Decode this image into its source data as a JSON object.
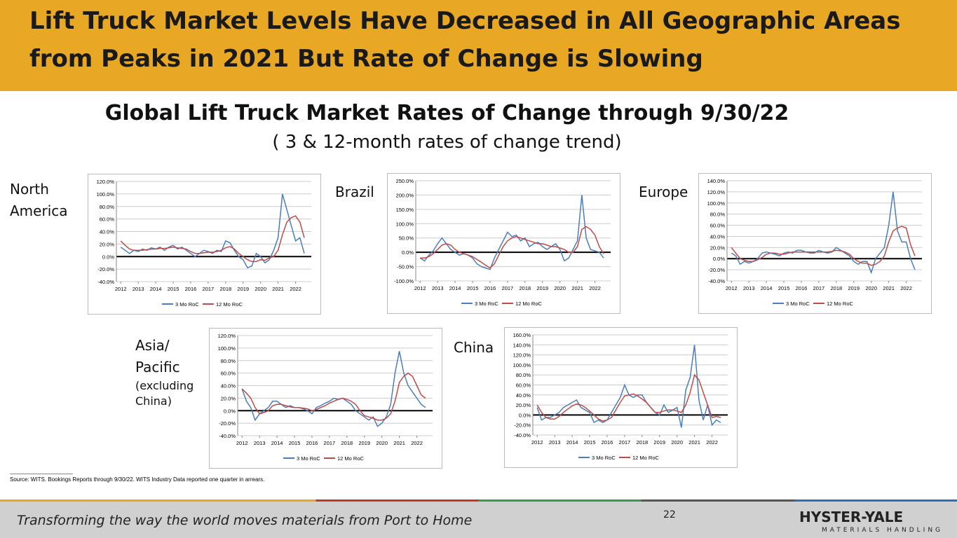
{
  "header": {
    "title_line1": "Lift Truck Market Levels Have Decreased in All Geographic Areas",
    "title_line2": "from Peaks in 2021 But Rate of Change is Slowing"
  },
  "subtitle": "Global Lift Truck Market Rates of Change through 9/30/22",
  "subtitle2": "( 3 & 12-month rates of change trend)",
  "chart_data": [
    {
      "type": "line",
      "title": "North America",
      "x": [
        2012,
        2012.25,
        2012.5,
        2012.75,
        2013,
        2013.25,
        2013.5,
        2013.75,
        2014,
        2014.25,
        2014.5,
        2014.75,
        2015,
        2015.25,
        2015.5,
        2015.75,
        2016,
        2016.25,
        2016.5,
        2016.75,
        2017,
        2017.25,
        2017.5,
        2017.75,
        2018,
        2018.25,
        2018.5,
        2018.75,
        2019,
        2019.25,
        2019.5,
        2019.75,
        2020,
        2020.25,
        2020.5,
        2020.75,
        2021,
        2021.25,
        2021.5,
        2021.75,
        2022,
        2022.25,
        2022.5
      ],
      "series": [
        {
          "name": "3 Mo RoC",
          "color": "#4a7ebb",
          "values": [
            15,
            10,
            5,
            10,
            8,
            12,
            10,
            14,
            12,
            15,
            10,
            15,
            18,
            12,
            15,
            10,
            5,
            0,
            5,
            10,
            8,
            5,
            10,
            8,
            25,
            22,
            10,
            0,
            -5,
            -18,
            -15,
            5,
            0,
            -10,
            -5,
            10,
            30,
            100,
            75,
            50,
            25,
            30,
            5
          ]
        },
        {
          "name": "12 Mo RoC",
          "color": "#be4b48",
          "values": [
            25,
            18,
            12,
            10,
            10,
            10,
            11,
            12,
            12,
            13,
            13,
            14,
            15,
            14,
            13,
            12,
            8,
            5,
            5,
            6,
            7,
            7,
            8,
            10,
            14,
            16,
            12,
            5,
            0,
            -5,
            -8,
            -8,
            -5,
            -6,
            -2,
            0,
            10,
            35,
            55,
            62,
            65,
            55,
            30
          ]
        }
      ],
      "xlim": [
        2011.75,
        2022.9
      ],
      "xticks": [
        2012,
        2013,
        2014,
        2015,
        2016,
        2017,
        2018,
        2019,
        2020,
        2021,
        2022
      ],
      "ylim": [
        -40,
        120
      ],
      "yticks": [
        {
          "value": -40,
          "label": "-40.0%"
        },
        {
          "value": -20,
          "label": "-20.0%"
        },
        {
          "value": 0,
          "label": "0.0%"
        },
        {
          "value": 20,
          "label": "20.0%"
        },
        {
          "value": 40,
          "label": "40.0%"
        },
        {
          "value": 60,
          "label": "60.0%"
        },
        {
          "value": 80,
          "label": "80.0%"
        },
        {
          "value": 100,
          "label": "100.0%"
        },
        {
          "value": 120,
          "label": "120.0%"
        }
      ]
    },
    {
      "type": "line",
      "title": "Brazil",
      "x": [
        2012,
        2012.25,
        2012.5,
        2012.75,
        2013,
        2013.25,
        2013.5,
        2013.75,
        2014,
        2014.25,
        2014.5,
        2014.75,
        2015,
        2015.25,
        2015.5,
        2015.75,
        2016,
        2016.25,
        2016.5,
        2016.75,
        2017,
        2017.25,
        2017.5,
        2017.75,
        2018,
        2018.25,
        2018.5,
        2018.75,
        2019,
        2019.25,
        2019.5,
        2019.75,
        2020,
        2020.25,
        2020.5,
        2020.75,
        2021,
        2021.25,
        2021.5,
        2021.75,
        2022,
        2022.25,
        2022.5
      ],
      "series": [
        {
          "name": "3 Mo RoC",
          "color": "#4a7ebb",
          "values": [
            -20,
            -30,
            -10,
            5,
            30,
            50,
            30,
            10,
            0,
            -10,
            -5,
            -10,
            -20,
            -40,
            -50,
            -55,
            -60,
            -20,
            10,
            40,
            70,
            55,
            60,
            40,
            50,
            20,
            30,
            35,
            20,
            10,
            20,
            30,
            10,
            -30,
            -20,
            10,
            40,
            200,
            50,
            10,
            5,
            0,
            -20
          ]
        },
        {
          "name": "12 Mo RoC",
          "color": "#be4b48",
          "values": [
            -20,
            -20,
            -15,
            -5,
            10,
            25,
            30,
            25,
            10,
            0,
            -5,
            -10,
            -15,
            -25,
            -35,
            -45,
            -55,
            -40,
            -10,
            20,
            40,
            50,
            55,
            50,
            45,
            40,
            35,
            30,
            30,
            25,
            20,
            20,
            15,
            10,
            0,
            0,
            20,
            80,
            90,
            80,
            60,
            20,
            -5
          ]
        }
      ],
      "xlim": [
        2011.75,
        2022.9
      ],
      "xticks": [
        2012,
        2013,
        2014,
        2015,
        2016,
        2017,
        2018,
        2019,
        2020,
        2021,
        2022
      ],
      "ylim": [
        -100,
        250
      ],
      "yticks": [
        {
          "value": -100,
          "label": "-100.0%"
        },
        {
          "value": -50,
          "label": "-50.0%"
        },
        {
          "value": 0,
          "label": "0.0%"
        },
        {
          "value": 50,
          "label": "50.0%"
        },
        {
          "value": 100,
          "label": "100.0%"
        },
        {
          "value": 150,
          "label": "150.0%"
        },
        {
          "value": 200,
          "label": "200.0%"
        },
        {
          "value": 250,
          "label": "250.0%"
        }
      ]
    },
    {
      "type": "line",
      "title": "Europe",
      "x": [
        2012,
        2012.25,
        2012.5,
        2012.75,
        2013,
        2013.25,
        2013.5,
        2013.75,
        2014,
        2014.25,
        2014.5,
        2014.75,
        2015,
        2015.25,
        2015.5,
        2015.75,
        2016,
        2016.25,
        2016.5,
        2016.75,
        2017,
        2017.25,
        2017.5,
        2017.75,
        2018,
        2018.25,
        2018.5,
        2018.75,
        2019,
        2019.25,
        2019.5,
        2019.75,
        2020,
        2020.25,
        2020.5,
        2020.75,
        2021,
        2021.25,
        2021.5,
        2021.75,
        2022,
        2022.25,
        2022.5
      ],
      "series": [
        {
          "name": "3 Mo RoC",
          "color": "#4a7ebb",
          "values": [
            10,
            5,
            -10,
            -5,
            -8,
            -5,
            0,
            10,
            12,
            10,
            8,
            5,
            10,
            12,
            10,
            15,
            15,
            12,
            10,
            10,
            15,
            12,
            10,
            12,
            20,
            15,
            10,
            5,
            -5,
            -10,
            -5,
            -5,
            -25,
            0,
            10,
            20,
            60,
            120,
            50,
            30,
            30,
            0,
            -20
          ]
        },
        {
          "name": "12 Mo RoC",
          "color": "#be4b48",
          "values": [
            20,
            10,
            0,
            -3,
            -5,
            -5,
            -2,
            2,
            8,
            10,
            10,
            8,
            8,
            10,
            12,
            12,
            12,
            12,
            12,
            12,
            12,
            12,
            12,
            13,
            15,
            14,
            12,
            8,
            0,
            -5,
            -8,
            -8,
            -12,
            -10,
            -5,
            5,
            30,
            50,
            55,
            58,
            55,
            25,
            5
          ]
        }
      ],
      "xlim": [
        2011.75,
        2022.9
      ],
      "xticks": [
        2012,
        2013,
        2014,
        2015,
        2016,
        2017,
        2018,
        2019,
        2020,
        2021,
        2022
      ],
      "ylim": [
        -40,
        140
      ],
      "yticks": [
        {
          "value": -40,
          "label": "-40.0%"
        },
        {
          "value": -20,
          "label": "-20.0%"
        },
        {
          "value": 0,
          "label": "0.0%"
        },
        {
          "value": 20,
          "label": "20.0%"
        },
        {
          "value": 40,
          "label": "40.0%"
        },
        {
          "value": 60,
          "label": "60.0%"
        },
        {
          "value": 80,
          "label": "80.0%"
        },
        {
          "value": 100,
          "label": "100.0%"
        },
        {
          "value": 120,
          "label": "120.0%"
        },
        {
          "value": 140,
          "label": "140.0%"
        }
      ]
    },
    {
      "type": "line",
      "title": "Asia/",
      "title2": "Pacific",
      "title3": "(excluding",
      "title4": "China)",
      "x": [
        2012,
        2012.25,
        2012.5,
        2012.75,
        2013,
        2013.25,
        2013.5,
        2013.75,
        2014,
        2014.25,
        2014.5,
        2014.75,
        2015,
        2015.25,
        2015.5,
        2015.75,
        2016,
        2016.25,
        2016.5,
        2016.75,
        2017,
        2017.25,
        2017.5,
        2017.75,
        2018,
        2018.25,
        2018.5,
        2018.75,
        2019,
        2019.25,
        2019.5,
        2019.75,
        2020,
        2020.25,
        2020.5,
        2020.75,
        2021,
        2021.25,
        2021.5,
        2021.75,
        2022,
        2022.25,
        2022.5
      ],
      "series": [
        {
          "name": "3 Mo RoC",
          "color": "#4a7ebb",
          "values": [
            35,
            15,
            5,
            -15,
            -5,
            0,
            5,
            15,
            15,
            10,
            5,
            8,
            5,
            5,
            3,
            0,
            -5,
            5,
            8,
            12,
            15,
            20,
            18,
            20,
            15,
            10,
            0,
            -5,
            -10,
            -15,
            -10,
            -25,
            -20,
            -10,
            10,
            60,
            95,
            60,
            40,
            30,
            20,
            10,
            5
          ]
        },
        {
          "name": "12 Mo RoC",
          "color": "#be4b48",
          "values": [
            35,
            28,
            20,
            5,
            -5,
            -3,
            0,
            8,
            10,
            10,
            8,
            6,
            5,
            5,
            4,
            3,
            0,
            2,
            5,
            8,
            12,
            15,
            18,
            20,
            18,
            15,
            10,
            0,
            -8,
            -10,
            -12,
            -15,
            -15,
            -12,
            -5,
            15,
            45,
            55,
            60,
            55,
            40,
            25,
            20
          ]
        }
      ],
      "xlim": [
        2011.75,
        2022.9
      ],
      "xticks": [
        2012,
        2013,
        2014,
        2015,
        2016,
        2017,
        2018,
        2019,
        2020,
        2021,
        2022
      ],
      "ylim": [
        -40,
        120
      ],
      "yticks": [
        {
          "value": -40,
          "label": "-40.0%"
        },
        {
          "value": -20,
          "label": "-20.0%"
        },
        {
          "value": 0,
          "label": "0.0%"
        },
        {
          "value": 20,
          "label": "20.0%"
        },
        {
          "value": 40,
          "label": "40.0%"
        },
        {
          "value": 60,
          "label": "60.0%"
        },
        {
          "value": 80,
          "label": "80.0%"
        },
        {
          "value": 100,
          "label": "100.0%"
        },
        {
          "value": 120,
          "label": "120.0%"
        }
      ]
    },
    {
      "type": "line",
      "title": "China",
      "x": [
        2012,
        2012.25,
        2012.5,
        2012.75,
        2013,
        2013.25,
        2013.5,
        2013.75,
        2014,
        2014.25,
        2014.5,
        2014.75,
        2015,
        2015.25,
        2015.5,
        2015.75,
        2016,
        2016.25,
        2016.5,
        2016.75,
        2017,
        2017.25,
        2017.5,
        2017.75,
        2018,
        2018.25,
        2018.5,
        2018.75,
        2019,
        2019.25,
        2019.5,
        2019.75,
        2020,
        2020.25,
        2020.5,
        2020.75,
        2021,
        2021.25,
        2021.5,
        2021.75,
        2022,
        2022.25,
        2022.5
      ],
      "series": [
        {
          "name": "3 Mo RoC",
          "color": "#4a7ebb",
          "values": [
            15,
            -10,
            -5,
            -5,
            0,
            5,
            15,
            20,
            25,
            30,
            15,
            10,
            5,
            -15,
            -10,
            -15,
            -10,
            5,
            20,
            35,
            60,
            40,
            35,
            40,
            40,
            25,
            15,
            5,
            0,
            20,
            5,
            10,
            15,
            -25,
            50,
            75,
            140,
            30,
            -10,
            20,
            -20,
            -10,
            -15
          ]
        },
        {
          "name": "12 Mo RoC",
          "color": "#be4b48",
          "values": [
            20,
            5,
            -5,
            -8,
            -8,
            -3,
            5,
            12,
            18,
            22,
            20,
            15,
            8,
            0,
            -8,
            -12,
            -10,
            -5,
            10,
            25,
            38,
            40,
            42,
            38,
            32,
            25,
            15,
            5,
            5,
            8,
            10,
            10,
            8,
            5,
            20,
            45,
            80,
            70,
            45,
            20,
            -5,
            -3,
            -5
          ]
        }
      ],
      "xlim": [
        2011.75,
        2022.9
      ],
      "xticks": [
        2012,
        2013,
        2014,
        2015,
        2016,
        2017,
        2018,
        2019,
        2020,
        2021,
        2022
      ],
      "ylim": [
        -40,
        160
      ],
      "yticks": [
        {
          "value": -40,
          "label": "-40.0%"
        },
        {
          "value": -20,
          "label": "-20.0%"
        },
        {
          "value": 0,
          "label": "0.0%"
        },
        {
          "value": 20,
          "label": "20.0%"
        },
        {
          "value": 40,
          "label": "40.0%"
        },
        {
          "value": 60,
          "label": "60.0%"
        },
        {
          "value": 80,
          "label": "80.0%"
        },
        {
          "value": 100,
          "label": "100.0%"
        },
        {
          "value": 120,
          "label": "120.0%"
        },
        {
          "value": 140,
          "label": "140.0%"
        },
        {
          "value": 160,
          "label": "160.0%"
        }
      ]
    }
  ],
  "source": "Source: WITS. Bookings Reports through 9/30/22. WITS Industry Data reported one quarter in arrears.",
  "footer": {
    "tagline": "Transforming the way the world moves materials from Port to Home",
    "page": "22",
    "logo": "HYSTER-YALE",
    "logo_sub": "MATERIALS HANDLING"
  }
}
